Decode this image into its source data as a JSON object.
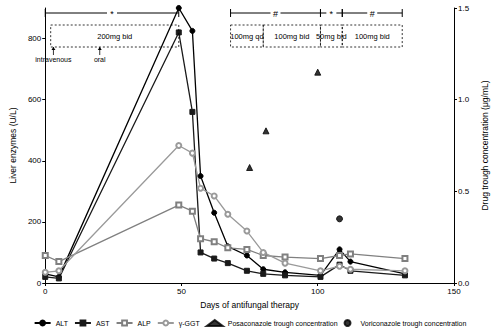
{
  "chart_data": {
    "type": "line",
    "x_label": "Days of antifungal therapy",
    "y_label": "Liver enzymes (U/L)",
    "y2_label": "Drug trough concentration (μg/mL)",
    "xlim": [
      0,
      150
    ],
    "xticks": [
      0,
      50,
      100,
      150
    ],
    "ylim": [
      0,
      900
    ],
    "yticks": [
      0,
      200,
      400,
      600,
      800
    ],
    "y2lim": [
      0,
      1.5
    ],
    "y2ticks": [
      {
        "value": 0,
        "label": "0.0"
      },
      0.5,
      {
        "value": 1,
        "label": "1.0"
      },
      1.5
    ],
    "grid": false,
    "legend": "bottom",
    "x": [
      0,
      5,
      49,
      54,
      57,
      62,
      67,
      74,
      80,
      88,
      101,
      108,
      112,
      132
    ],
    "series": [
      {
        "name": "ALT",
        "type": "line",
        "color": "#000000",
        "marker": "circle",
        "line_style": "solid",
        "values": [
          30,
          20,
          900,
          825,
          350,
          230,
          120,
          90,
          45,
          35,
          25,
          110,
          70,
          30
        ]
      },
      {
        "name": "AST",
        "type": "line",
        "color": "#1a1a1a",
        "marker": "square",
        "line_style": "solid",
        "values": [
          20,
          15,
          820,
          560,
          100,
          80,
          65,
          40,
          30,
          25,
          20,
          60,
          40,
          25
        ]
      },
      {
        "name": "ALP",
        "type": "line",
        "color": "#808080",
        "marker": "open-square",
        "line_style": "solid",
        "values": [
          90,
          70,
          255,
          235,
          145,
          135,
          115,
          110,
          90,
          85,
          80,
          90,
          95,
          80
        ]
      },
      {
        "name": "γ-GGT",
        "type": "line",
        "color": "#9a9a9a",
        "marker": "open-circle",
        "line_style": "solid",
        "values": [
          35,
          40,
          450,
          425,
          310,
          285,
          225,
          170,
          100,
          65,
          40,
          55,
          45,
          40
        ]
      },
      {
        "name": "Posaconazole trough concentration",
        "type": "scatter",
        "axis": "y2",
        "color": "#000000",
        "marker": "triangle",
        "x": [
          75,
          81,
          100
        ],
        "values": [
          0.63,
          0.83,
          1.15
        ]
      },
      {
        "name": "Voriconazole trough concentration",
        "type": "scatter",
        "axis": "y2",
        "color": "#000000",
        "marker": "circle",
        "x": [
          108
        ],
        "values": [
          0.35
        ]
      }
    ],
    "periods": [
      {
        "label": "*",
        "start": 0,
        "end": 49
      },
      {
        "label": "#",
        "start": 68,
        "end": 101
      },
      {
        "label": "*",
        "start": 101,
        "end": 109
      },
      {
        "label": "#",
        "start": 109,
        "end": 131
      }
    ],
    "regimens": [
      {
        "label": "200mg bid",
        "start": 2,
        "end": 49
      },
      {
        "label": "100mg qd",
        "start": 68,
        "end": 80
      },
      {
        "label": "100mg bid",
        "start": 80,
        "end": 101
      },
      {
        "label": "50mg bid",
        "start": 101,
        "end": 109
      },
      {
        "label": "100mg bid",
        "start": 109,
        "end": 131
      }
    ],
    "routes": [
      {
        "label": "intravenous",
        "day": 3
      },
      {
        "label": "oral",
        "day": 20
      }
    ]
  }
}
